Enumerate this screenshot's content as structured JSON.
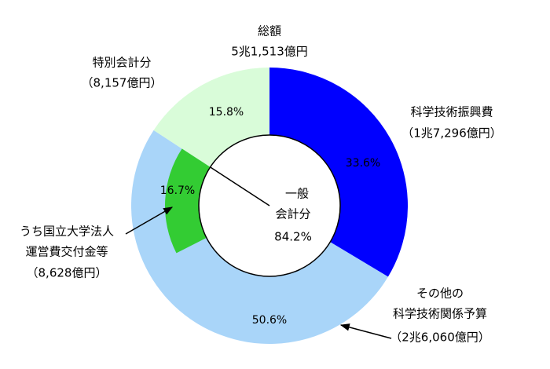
{
  "chart_data": {
    "type": "donut",
    "total_name": "総額",
    "total_amount": "5兆1,513億円",
    "categories": [
      [
        "科学技術振興費"
      ],
      [
        "その他の",
        "科学技術関係予算"
      ],
      [
        "特別会計分"
      ]
    ],
    "amounts": [
      "（1兆7,296億円）",
      "（2兆6,060億円）",
      "（8,157億円）"
    ],
    "values": [
      33.6,
      50.6,
      15.8
    ],
    "value_labels": [
      "33.6%",
      "50.6%",
      "15.8%"
    ],
    "colors": [
      "#0000ff",
      "#a9d5f9",
      "#d9fcd9"
    ],
    "sub_segment": {
      "name": [
        "うち国立大学法人",
        "運営費交付金等"
      ],
      "amount": "（8,628億円）",
      "value": 16.7,
      "value_label": "16.7%",
      "color": "#33cc33",
      "within": 1
    },
    "center_name": [
      "一般",
      "会計分"
    ],
    "center_value": 84.2,
    "center_value_label": "84.2%"
  }
}
